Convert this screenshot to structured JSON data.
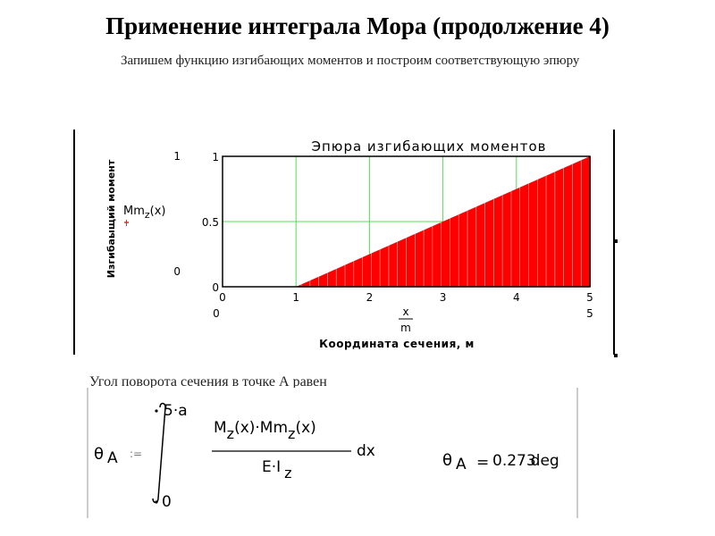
{
  "title": "Применение интеграла Мора (продолжение 4)",
  "intro_text": "Запишем функцию изгибающих моментов и построим соответствующую эпюру",
  "angle_intro": "Угол поворота сечения в точке А равен",
  "chart_data": {
    "type": "area",
    "title": "Эпюра изгибающих моментов",
    "xlabel": "Координата сечения, м",
    "ylabel": "Изгибаыщий момент",
    "x_var": "x",
    "x_unit": "m",
    "y_var_main": "Mm",
    "y_var_sub": "z",
    "y_var_arg": "(x)",
    "x_range_label_min": "0",
    "x_range_label_max": "5",
    "y_range_label_min": "0",
    "y_range_label_max": "1",
    "xlim": [
      0,
      5
    ],
    "ylim": [
      0,
      1
    ],
    "x_ticks": [
      "0",
      "1",
      "2",
      "3",
      "4",
      "5"
    ],
    "y_ticks": [
      "0",
      "0.5",
      "1"
    ],
    "x": [
      0,
      1,
      5
    ],
    "series": [
      {
        "values": [
          0,
          0,
          1
        ]
      }
    ],
    "grid": true,
    "fill_color": "#ff0000",
    "grid_color": "#55dd55"
  },
  "formula": {
    "theta": "θ",
    "sub_a": "A",
    "assign": ":=",
    "upper_limit": "5·a",
    "lower_limit": "0",
    "numerator_m": "M",
    "numerator_mm": "·Mm",
    "sub_z": "z",
    "arg_x": "(x)",
    "denominator": "E·I",
    "dx": "dx",
    "equals": "=",
    "result_value": "0.273",
    "result_unit": "deg"
  }
}
